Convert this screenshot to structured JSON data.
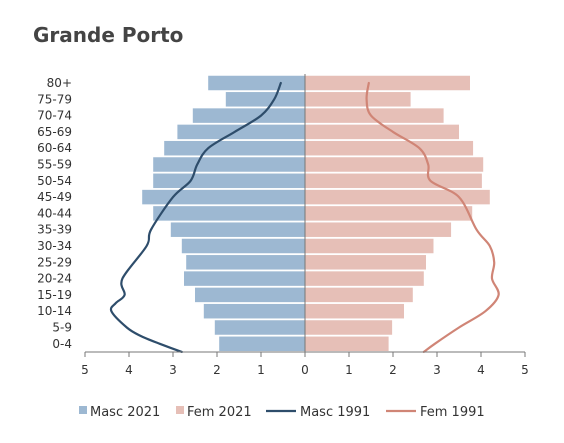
{
  "chart_data": {
    "type": "bar",
    "title": "Grande Porto",
    "categories": [
      "0-4",
      "5-9",
      "10-14",
      "15-19",
      "20-24",
      "25-29",
      "30-34",
      "35-39",
      "40-44",
      "45-49",
      "50-54",
      "55-59",
      "60-64",
      "65-69",
      "70-74",
      "75-79",
      "80+"
    ],
    "series": [
      {
        "name": "Masc 2021",
        "kind": "bar",
        "side": "left",
        "color": "#9db8d2",
        "values": [
          1.95,
          2.05,
          2.3,
          2.5,
          2.75,
          2.7,
          2.8,
          3.05,
          3.45,
          3.7,
          3.45,
          3.45,
          3.2,
          2.9,
          2.55,
          1.8,
          2.2
        ]
      },
      {
        "name": "Fem 2021",
        "kind": "bar",
        "side": "right",
        "color": "#e6bfb7",
        "values": [
          1.9,
          1.98,
          2.25,
          2.45,
          2.7,
          2.75,
          2.92,
          3.32,
          3.8,
          4.2,
          4.02,
          4.05,
          3.82,
          3.5,
          3.15,
          2.4,
          3.75
        ]
      },
      {
        "name": "Masc 1991",
        "kind": "line",
        "side": "left",
        "color": "#2e4d6b",
        "points": [
          [
            2.8,
            -0.5
          ],
          [
            3.3,
            0
          ],
          [
            3.75,
            0.5
          ],
          [
            4.05,
            1
          ],
          [
            4.4,
            2
          ],
          [
            4.3,
            2.5
          ],
          [
            4.1,
            3
          ],
          [
            4.15,
            4
          ],
          [
            3.6,
            6
          ],
          [
            3.5,
            7
          ],
          [
            3.0,
            9
          ],
          [
            2.6,
            10
          ],
          [
            2.45,
            11
          ],
          [
            2.2,
            12
          ],
          [
            1.6,
            13
          ],
          [
            1.0,
            14
          ],
          [
            0.7,
            15
          ],
          [
            0.55,
            16
          ]
        ]
      },
      {
        "name": "Fem 1991",
        "kind": "line",
        "side": "right",
        "color": "#d08576",
        "points": [
          [
            2.7,
            -0.5
          ],
          [
            2.95,
            0
          ],
          [
            3.5,
            1
          ],
          [
            4.1,
            2
          ],
          [
            4.4,
            3
          ],
          [
            4.25,
            4
          ],
          [
            4.3,
            5
          ],
          [
            4.2,
            6
          ],
          [
            3.9,
            7
          ],
          [
            3.5,
            9
          ],
          [
            2.85,
            10
          ],
          [
            2.8,
            11
          ],
          [
            2.6,
            12
          ],
          [
            2.0,
            13
          ],
          [
            1.5,
            14
          ],
          [
            1.4,
            15
          ],
          [
            1.45,
            16
          ]
        ]
      }
    ],
    "xlim": [
      -5,
      5
    ],
    "xticks": [
      -5,
      -4,
      -3,
      -2,
      -1,
      0,
      1,
      2,
      3,
      4,
      5
    ],
    "xtick_labels": [
      "5",
      "4",
      "3",
      "2",
      "1",
      "0",
      "1",
      "2",
      "3",
      "4",
      "5"
    ],
    "grid": false,
    "legend_position": "bottom"
  }
}
